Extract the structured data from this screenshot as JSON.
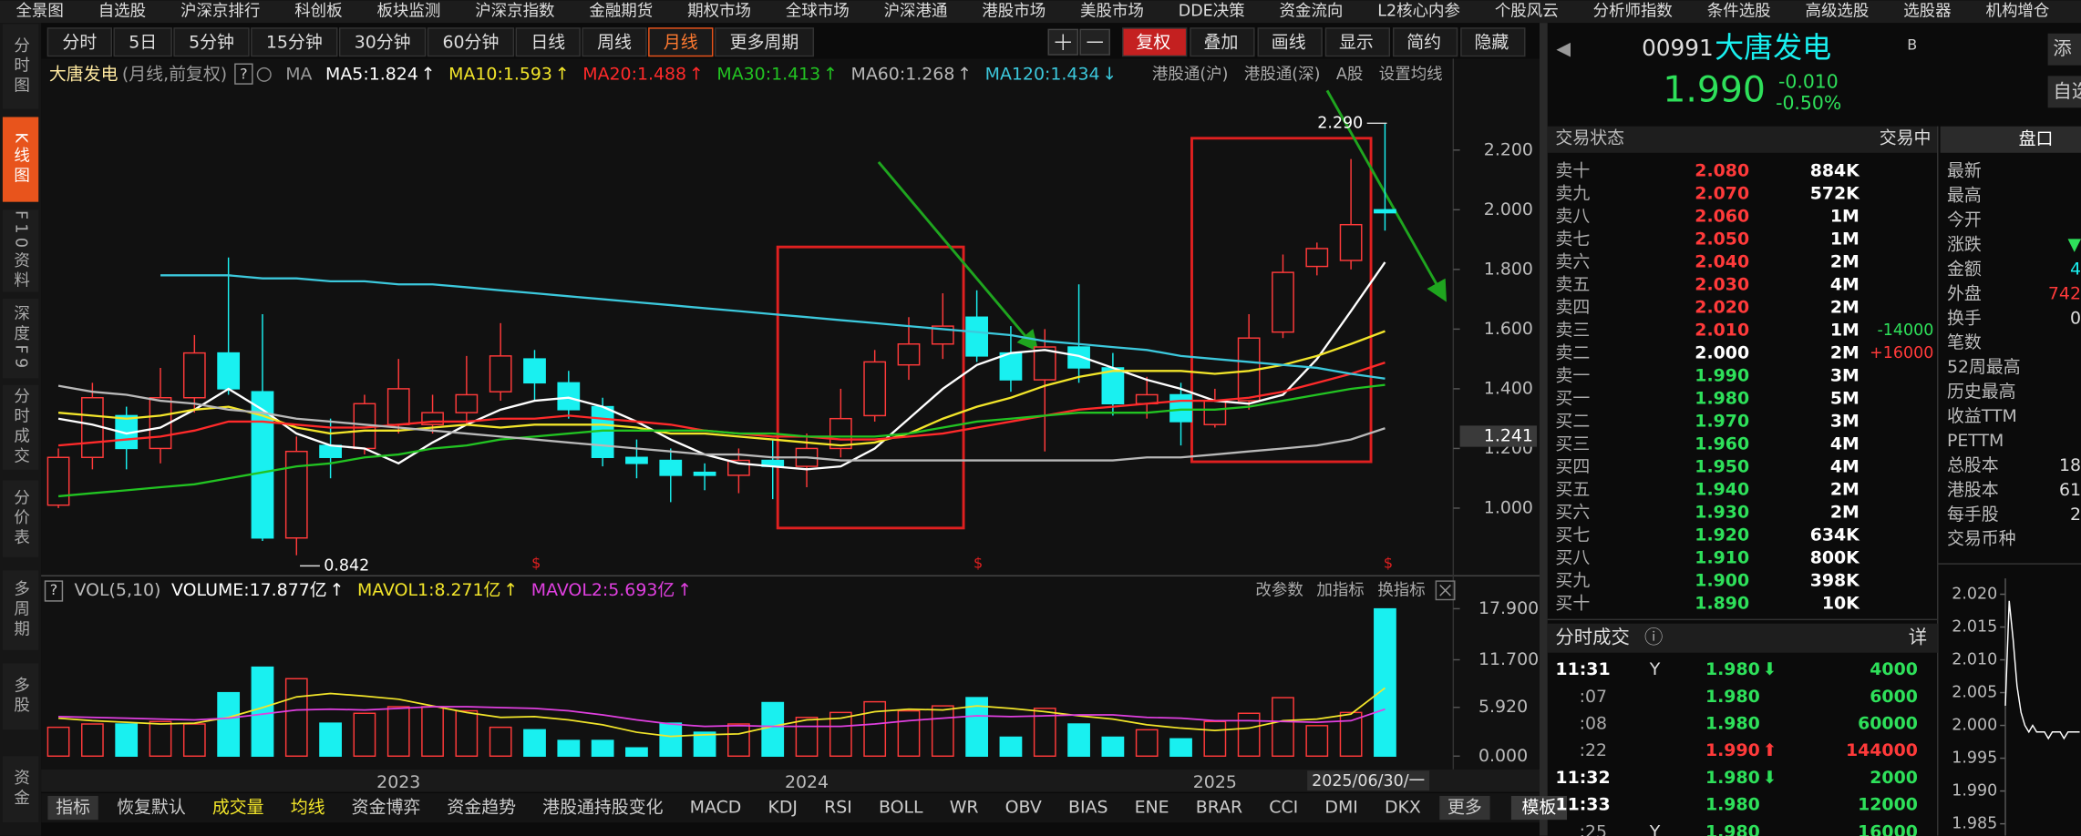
{
  "top_menu": [
    "全景图",
    "自选股",
    "沪深京排行",
    "科创板",
    "板块监测",
    "沪深京指数",
    "金融期货",
    "期权市场",
    "全球市场",
    "沪深港通",
    "港股市场",
    "美股市场",
    "DDE决策",
    "资金流向",
    "L2核心内参",
    "个股风云",
    "分析师指数",
    "条件选股",
    "高级选股",
    "选股器",
    "机构增仓"
  ],
  "side_tabs": {
    "items": [
      "分时图",
      "K线图",
      "F10资料",
      "深度F9",
      "分时成交",
      "分价表",
      "多周期",
      "多股",
      "资金"
    ],
    "active": "K线图"
  },
  "period_tabs": {
    "items": [
      "分时",
      "5日",
      "5分钟",
      "15分钟",
      "30分钟",
      "60分钟",
      "日线",
      "周线",
      "月线",
      "更多周期"
    ],
    "active": "月线"
  },
  "toolbar": {
    "items": [
      "复权",
      "叠加",
      "画线",
      "显示",
      "简约",
      "隐藏"
    ],
    "active": "复权"
  },
  "bottom_tabs": {
    "items": [
      "指标",
      "恢复默认",
      "成交量",
      "均线",
      "资金博弈",
      "资金趋势",
      "港股通持股变化",
      "MACD",
      "KDJ",
      "RSI",
      "BOLL",
      "WR",
      "OBV",
      "BIAS",
      "ENE",
      "BRAR",
      "CCI",
      "DMI",
      "DKX",
      "更多"
    ],
    "boxed": "指标",
    "highlight": [
      "成交量",
      "均线"
    ],
    "template": "模板"
  },
  "chart_data": [
    {
      "type": "candlestick",
      "stock_name": "大唐发电",
      "mode": "(月线,前复权)",
      "help_icon": "?",
      "ma_label": "MA",
      "sep": ":",
      "header_links": [
        "港股通(沪)",
        "港股通(深)",
        "A股",
        "设置均线"
      ],
      "up_color": "#ff3a3a",
      "down_color": "#19f0f0",
      "categories": [
        null,
        null,
        null,
        null,
        null,
        null,
        null,
        null,
        null,
        null,
        "2023",
        null,
        null,
        null,
        null,
        null,
        null,
        null,
        null,
        null,
        null,
        null,
        "2024",
        null,
        null,
        null,
        null,
        null,
        null,
        null,
        null,
        null,
        null,
        null,
        "2025",
        null,
        null,
        null,
        null,
        null
      ],
      "open": [
        1.01,
        1.17,
        1.31,
        1.2,
        1.37,
        1.52,
        1.39,
        0.9,
        1.21,
        1.2,
        1.28,
        1.28,
        1.32,
        1.39,
        1.5,
        1.42,
        1.34,
        1.17,
        1.16,
        1.12,
        1.11,
        1.16,
        1.14,
        1.2,
        1.31,
        1.48,
        1.55,
        1.64,
        1.52,
        1.43,
        1.54,
        1.47,
        1.35,
        1.38,
        1.28,
        1.36,
        1.59,
        1.81,
        1.83,
        2.0
      ],
      "high": [
        1.2,
        1.42,
        1.34,
        1.47,
        1.58,
        1.84,
        1.65,
        1.24,
        1.3,
        1.38,
        1.5,
        1.38,
        1.51,
        1.62,
        1.53,
        1.46,
        1.37,
        1.23,
        1.2,
        1.15,
        1.2,
        1.23,
        1.25,
        1.4,
        1.53,
        1.64,
        1.72,
        1.73,
        1.61,
        1.6,
        1.75,
        1.52,
        1.44,
        1.42,
        1.4,
        1.65,
        1.85,
        1.89,
        2.17,
        2.29
      ],
      "low": [
        1.0,
        1.13,
        1.13,
        1.15,
        1.32,
        1.38,
        0.89,
        0.842,
        1.1,
        1.18,
        1.25,
        1.25,
        1.28,
        1.36,
        1.36,
        1.3,
        1.14,
        1.1,
        1.02,
        1.06,
        1.05,
        1.03,
        1.07,
        1.17,
        1.29,
        1.43,
        1.5,
        1.49,
        1.39,
        1.19,
        1.42,
        1.31,
        1.3,
        1.21,
        1.27,
        1.33,
        1.57,
        1.78,
        1.8,
        1.93
      ],
      "close": [
        1.17,
        1.37,
        1.2,
        1.37,
        1.52,
        1.4,
        0.9,
        1.19,
        1.17,
        1.35,
        1.4,
        1.32,
        1.38,
        1.51,
        1.42,
        1.33,
        1.17,
        1.15,
        1.11,
        1.11,
        1.16,
        1.14,
        1.2,
        1.3,
        1.49,
        1.55,
        1.61,
        1.51,
        1.43,
        1.54,
        1.47,
        1.35,
        1.38,
        1.29,
        1.36,
        1.57,
        1.79,
        1.87,
        1.95,
        1.99
      ],
      "series": [
        {
          "name": "MA5",
          "color": "#ffffff",
          "trend": "↑",
          "value_label": "1.824",
          "values": [
            1.3,
            1.28,
            1.25,
            1.27,
            1.33,
            1.4,
            1.33,
            1.25,
            1.21,
            1.2,
            1.15,
            1.22,
            1.28,
            1.33,
            1.36,
            1.37,
            1.34,
            1.29,
            1.23,
            1.18,
            1.15,
            1.14,
            1.13,
            1.14,
            1.2,
            1.3,
            1.4,
            1.48,
            1.52,
            1.53,
            1.51,
            1.47,
            1.43,
            1.4,
            1.36,
            1.35,
            1.38,
            1.5,
            1.66,
            1.824
          ]
        },
        {
          "name": "MA10",
          "color": "#f2e52a",
          "trend": "↑",
          "value_label": "1.593",
          "values": [
            1.32,
            1.31,
            1.3,
            1.31,
            1.33,
            1.34,
            1.31,
            1.27,
            1.25,
            1.26,
            1.26,
            1.27,
            1.28,
            1.27,
            1.28,
            1.28,
            1.28,
            1.27,
            1.25,
            1.25,
            1.24,
            1.23,
            1.22,
            1.21,
            1.22,
            1.25,
            1.3,
            1.34,
            1.37,
            1.41,
            1.44,
            1.46,
            1.46,
            1.46,
            1.45,
            1.46,
            1.48,
            1.51,
            1.55,
            1.593
          ]
        },
        {
          "name": "MA20",
          "color": "#ff2a2a",
          "trend": "↑",
          "value_label": "1.488",
          "values": [
            1.21,
            1.22,
            1.23,
            1.24,
            1.26,
            1.29,
            1.29,
            1.28,
            1.27,
            1.27,
            1.28,
            1.29,
            1.29,
            1.3,
            1.3,
            1.31,
            1.3,
            1.29,
            1.28,
            1.26,
            1.25,
            1.24,
            1.24,
            1.23,
            1.23,
            1.24,
            1.25,
            1.27,
            1.29,
            1.31,
            1.33,
            1.34,
            1.35,
            1.36,
            1.36,
            1.37,
            1.39,
            1.42,
            1.45,
            1.488
          ]
        },
        {
          "name": "MA30",
          "color": "#22c322",
          "trend": "↑",
          "value_label": "1.413",
          "values": [
            1.04,
            1.05,
            1.06,
            1.07,
            1.08,
            1.1,
            1.12,
            1.14,
            1.15,
            1.17,
            1.18,
            1.2,
            1.21,
            1.23,
            1.24,
            1.25,
            1.26,
            1.26,
            1.26,
            1.26,
            1.25,
            1.25,
            1.24,
            1.24,
            1.24,
            1.25,
            1.27,
            1.29,
            1.3,
            1.31,
            1.32,
            1.32,
            1.32,
            1.33,
            1.33,
            1.34,
            1.36,
            1.38,
            1.4,
            1.413
          ]
        },
        {
          "name": "MA60",
          "color": "#b8b8b8",
          "trend": "↑",
          "value_label": "1.268",
          "values": [
            1.41,
            1.39,
            1.38,
            1.36,
            1.35,
            1.33,
            1.32,
            1.3,
            1.29,
            1.28,
            1.27,
            1.26,
            1.25,
            1.24,
            1.23,
            1.22,
            1.21,
            1.2,
            1.19,
            1.18,
            1.18,
            1.17,
            1.17,
            1.16,
            1.16,
            1.16,
            1.16,
            1.16,
            1.16,
            1.16,
            1.16,
            1.16,
            1.17,
            1.17,
            1.18,
            1.19,
            1.2,
            1.21,
            1.23,
            1.268
          ]
        },
        {
          "name": "MA120",
          "color": "#3cc8dc",
          "trend": "↓",
          "value_label": "1.434",
          "values": [
            null,
            null,
            null,
            1.78,
            1.78,
            1.78,
            1.77,
            1.77,
            1.76,
            1.76,
            1.75,
            1.75,
            1.74,
            1.73,
            1.72,
            1.71,
            1.7,
            1.69,
            1.68,
            1.67,
            1.66,
            1.65,
            1.64,
            1.63,
            1.62,
            1.61,
            1.6,
            1.59,
            1.58,
            1.56,
            1.55,
            1.54,
            1.53,
            1.51,
            1.5,
            1.49,
            1.48,
            1.47,
            1.45,
            1.434
          ]
        }
      ],
      "ylim": [
        0.791,
        2.413
      ],
      "yticks": [
        {
          "value": 1,
          "label": "1.000"
        },
        {
          "value": 1.2,
          "label": "1.200"
        },
        {
          "value": 1.4,
          "label": "1.400"
        },
        {
          "value": 1.6,
          "label": "1.600"
        },
        {
          "value": 1.8,
          "label": "1.800"
        },
        {
          "value": 2,
          "label": "2.000"
        },
        {
          "value": 2.2,
          "label": "2.200"
        }
      ],
      "price_tag": {
        "value": 1.241,
        "label": "1.241"
      },
      "annotations": [
        {
          "value": 2.29,
          "label": "2.290"
        },
        {
          "value": 0.842,
          "label": "0.842"
        }
      ],
      "dividend_mark": "$",
      "cursor_label": "2025/06/30/一",
      "volume": {
        "title": "VOL(5,10)",
        "links": [
          "改参数",
          "加指标",
          "换指标"
        ],
        "ylim": [
          0,
          19
        ],
        "yticks": [
          {
            "value": 0,
            "label": "0.000"
          },
          {
            "value": 5.92,
            "label": "5.920"
          },
          {
            "value": 11.7,
            "label": "11.700"
          },
          {
            "value": 17.9,
            "label": "17.900"
          }
        ],
        "series": [
          {
            "name": "VOLUME",
            "color": "#ffffff",
            "trend": "↑",
            "value_label": "17.877亿",
            "values": [
              3.5,
              3.9,
              3.9,
              4.2,
              3.9,
              7.7,
              10.8,
              9.4,
              4.0,
              5.2,
              6.0,
              6.0,
              5.5,
              3.5,
              3.2,
              1.9,
              1.9,
              1.0,
              4.0,
              2.9,
              3.9,
              6.5,
              4.7,
              5.3,
              6.6,
              5.5,
              6.1,
              7.1,
              2.3,
              5.8,
              3.9,
              2.3,
              3.2,
              2.1,
              4.2,
              5.2,
              7.1,
              3.7,
              5.3,
              17.877
            ]
          },
          {
            "name": "MAVOL1",
            "color": "#f2e52a",
            "trend": "↑",
            "value_label": "8.271亿",
            "values": [
              4.6,
              4.3,
              4.1,
              3.9,
              4.0,
              4.7,
              5.9,
              7.2,
              7.6,
              7.3,
              6.9,
              6.1,
              5.3,
              4.7,
              4.8,
              4.4,
              3.8,
              2.9,
              2.4,
              2.6,
              2.7,
              3.6,
              4.4,
              4.6,
              5.4,
              5.7,
              5.6,
              6.1,
              5.8,
              5.4,
              4.9,
              4.5,
              3.8,
              3.4,
              3.1,
              3.4,
              4.3,
              4.5,
              5.1,
              8.271
            ]
          },
          {
            "name": "MAVOL2",
            "color": "#e040e0",
            "trend": "↑",
            "value_label": "5.693亿",
            "values": [
              4.8,
              4.7,
              4.6,
              4.5,
              4.4,
              4.6,
              5.1,
              5.6,
              5.7,
              5.6,
              5.8,
              6.0,
              6.0,
              5.9,
              5.8,
              5.5,
              5.0,
              4.4,
              3.9,
              3.6,
              3.7,
              3.6,
              3.6,
              3.6,
              3.9,
              4.3,
              4.6,
              4.9,
              4.8,
              4.9,
              5.0,
              5.0,
              4.7,
              4.6,
              4.3,
              4.3,
              4.2,
              4.1,
              4.3,
              5.693
            ]
          }
        ]
      }
    },
    {
      "type": "line",
      "color": "#ffffff",
      "values": [
        2.003,
        2.019,
        2.013,
        2.006,
        2.002,
        2.0,
        1.999,
        2.0,
        1.999,
        1.999,
        1.999,
        1.998,
        1.999,
        1.999,
        1.999,
        1.998,
        1.999,
        1.999,
        1.999,
        1.999
      ],
      "ylim": [
        1.9842,
        2.0216
      ],
      "yticks": [
        {
          "value": 1.985,
          "label": "1.985"
        },
        {
          "value": 1.99,
          "label": "1.990"
        },
        {
          "value": 1.995,
          "label": "1.995"
        },
        {
          "value": 2,
          "label": "2.000"
        },
        {
          "value": 2.005,
          "label": "2.005"
        },
        {
          "value": 2.01,
          "label": "2.010"
        },
        {
          "value": 2.015,
          "label": "2.015"
        },
        {
          "value": 2.02,
          "label": "2.020"
        }
      ]
    }
  ],
  "quote": {
    "back": "◀",
    "code": "00991",
    "name": "大唐发电",
    "badge": "B",
    "price": "1.990",
    "change": "-0.010",
    "change_pct": "-0.50%",
    "buttons": [
      "添",
      "自选"
    ]
  },
  "book": {
    "title": "交易状态",
    "status": "交易中",
    "rows": [
      {
        "label": "卖十",
        "price": "2.080",
        "vol": "884K",
        "color": "#ff3a3a"
      },
      {
        "label": "卖九",
        "price": "2.070",
        "vol": "572K",
        "color": "#ff3a3a"
      },
      {
        "label": "卖八",
        "price": "2.060",
        "vol": "1M",
        "color": "#ff3a3a"
      },
      {
        "label": "卖七",
        "price": "2.050",
        "vol": "1M",
        "color": "#ff3a3a"
      },
      {
        "label": "卖六",
        "price": "2.040",
        "vol": "2M",
        "color": "#ff3a3a"
      },
      {
        "label": "卖五",
        "price": "2.030",
        "vol": "4M",
        "color": "#ff3a3a"
      },
      {
        "label": "卖四",
        "price": "2.020",
        "vol": "2M",
        "color": "#ff3a3a"
      },
      {
        "label": "卖三",
        "price": "2.010",
        "vol": "1M",
        "color": "#ff3a3a",
        "change": "-14000",
        "change_color": "#2ee05a"
      },
      {
        "label": "卖二",
        "price": "2.000",
        "vol": "2M",
        "color": "#ffffff",
        "change": "+16000",
        "change_color": "#ff3a3a"
      },
      {
        "label": "卖一",
        "price": "1.990",
        "vol": "3M",
        "color": "#2ee05a"
      },
      {
        "label": "买一",
        "price": "1.980",
        "vol": "5M",
        "color": "#2ee05a"
      },
      {
        "label": "买二",
        "price": "1.970",
        "vol": "3M",
        "color": "#2ee05a"
      },
      {
        "label": "买三",
        "price": "1.960",
        "vol": "4M",
        "color": "#2ee05a"
      },
      {
        "label": "买四",
        "price": "1.950",
        "vol": "4M",
        "color": "#2ee05a"
      },
      {
        "label": "买五",
        "price": "1.940",
        "vol": "2M",
        "color": "#2ee05a"
      },
      {
        "label": "买六",
        "price": "1.930",
        "vol": "2M",
        "color": "#2ee05a"
      },
      {
        "label": "买七",
        "price": "1.920",
        "vol": "634K",
        "color": "#2ee05a"
      },
      {
        "label": "买八",
        "price": "1.910",
        "vol": "800K",
        "color": "#2ee05a"
      },
      {
        "label": "买九",
        "price": "1.900",
        "vol": "398K",
        "color": "#2ee05a"
      },
      {
        "label": "买十",
        "price": "1.890",
        "vol": "10K",
        "color": "#2ee05a"
      }
    ]
  },
  "trades": {
    "title": "分时成交",
    "info": "ⓘ",
    "detail": "详",
    "rows": [
      {
        "time": "11:31",
        "flag": "Y",
        "price": "1.980",
        "dir": "⬇",
        "vol": "4000",
        "color": "#2ee05a"
      },
      {
        "time": ":07",
        "price": "1.980",
        "vol": "6000",
        "color": "#2ee05a"
      },
      {
        "time": ":08",
        "price": "1.980",
        "vol": "60000",
        "color": "#2ee05a"
      },
      {
        "time": ":22",
        "price": "1.990",
        "dir": "⬆",
        "vol": "144000",
        "color": "#ff3a3a"
      },
      {
        "time": "11:32",
        "price": "1.980",
        "dir": "⬇",
        "vol": "2000",
        "color": "#2ee05a"
      },
      {
        "time": "11:33",
        "price": "1.980",
        "vol": "12000",
        "color": "#2ee05a"
      },
      {
        "time": ":25",
        "flag": "Y",
        "price": "1.980",
        "vol": "16000",
        "color": "#2ee05a"
      }
    ]
  },
  "panel": {
    "title": "盘口",
    "rows": [
      {
        "label": "最新"
      },
      {
        "label": "最高"
      },
      {
        "label": "今开"
      },
      {
        "label": "涨跌",
        "value": "▼",
        "color": "#2ee05a"
      },
      {
        "label": "金额",
        "value": "4",
        "color": "#19f0f0"
      },
      {
        "label": "外盘",
        "value": "742",
        "color": "#ff3a3a"
      },
      {
        "label": "换手",
        "value": "0",
        "color": "#dddddd"
      },
      {
        "label": "笔数"
      },
      {
        "label": "52周最高"
      },
      {
        "label": "历史最高"
      },
      {
        "label": "收益TTM"
      },
      {
        "label": "PETTM"
      },
      {
        "label": "总股本",
        "value": "18",
        "color": "#dddddd"
      },
      {
        "label": "港股本",
        "value": "61",
        "color": "#dddddd"
      },
      {
        "label": "每手股",
        "value": "2",
        "color": "#dddddd"
      },
      {
        "label": "交易币种"
      }
    ]
  }
}
